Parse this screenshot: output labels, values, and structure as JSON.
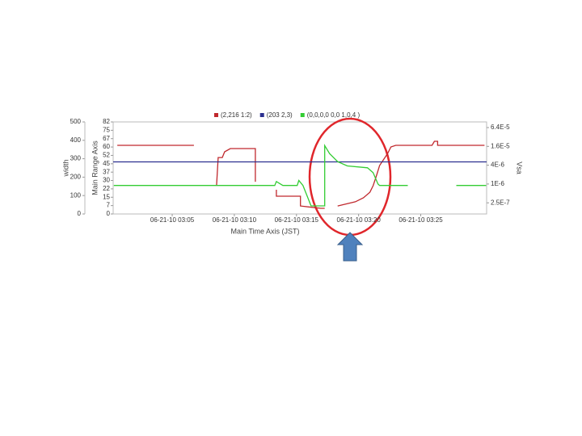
{
  "chart_data": {
    "type": "line",
    "x_label": "Main Time Axis (JST)",
    "xlim": [
      0.25,
      30.3
    ],
    "xticks": [
      {
        "value": 5,
        "label": "06-21-10 03:05"
      },
      {
        "value": 10,
        "label": "06-21-10 03:10"
      },
      {
        "value": 15,
        "label": "06-21-10 03:15"
      },
      {
        "value": 20,
        "label": "06-21-10 03:20"
      },
      {
        "value": 25,
        "label": "06-21-10 03:25"
      }
    ],
    "y_label": "Main Range Axis",
    "ylim": [
      0,
      82.5
    ],
    "yticks": [
      0,
      {
        "value": 7.5,
        "label": "7"
      },
      15,
      {
        "value": 22.5,
        "label": "22"
      },
      30,
      {
        "value": 37.5,
        "label": "37"
      },
      45,
      {
        "value": 52.5,
        "label": "52"
      },
      60,
      {
        "value": 67.5,
        "label": "67"
      },
      75,
      {
        "value": 82.5,
        "label": "82"
      }
    ],
    "width_axis": {
      "label": "width",
      "lim": [
        0,
        500
      ],
      "ticks": [
        0,
        100,
        200,
        300,
        400,
        500
      ]
    },
    "y2_label": "Vsa",
    "y2_log": true,
    "y2lim": [
      1.1e-07,
      9.7e-05
    ],
    "y2ticks": [
      {
        "value": 2.5e-07,
        "label": "2.5E-7"
      },
      {
        "value": 1e-06,
        "label": "1E-6"
      },
      {
        "value": 4e-06,
        "label": "4E-6"
      },
      {
        "value": 1.6e-05,
        "label": "1.6E-5"
      },
      {
        "value": 6.4e-05,
        "label": "6.4E-5"
      }
    ],
    "series": [
      {
        "name": "(2,216 1:2)",
        "color": "#c0282d",
        "axis": "y",
        "x": [
          0.58,
          6.75,
          null,
          8.57,
          8.7,
          9.03,
          9.22,
          9.68,
          11.69,
          11.69,
          null,
          13.38,
          13.38,
          15.32,
          15.32,
          16.95,
          17.27,
          null,
          18.31,
          19.74,
          20.39,
          20.91,
          21.17,
          21.43,
          21.69,
          22.34,
          22.6,
          22.99,
          25.91,
          26.1,
          26.36,
          26.36,
          30.13
        ],
        "values": [
          61.5,
          61.5,
          null,
          25.3,
          50.6,
          50.6,
          55.7,
          58.6,
          58.6,
          28.9,
          null,
          21.7,
          15.9,
          15.9,
          7.2,
          5.1,
          5.1,
          null,
          7.2,
          10.9,
          14.5,
          19.5,
          25.3,
          34,
          43.4,
          54.3,
          60.1,
          61.5,
          61.5,
          65.1,
          65.1,
          61.5,
          61.5
        ]
      },
      {
        "name": "(203 2,3)",
        "color": "#2b2f8f",
        "axis": "width",
        "x": [
          0.25,
          30.3
        ],
        "values": [
          283,
          283
        ]
      },
      {
        "name": "(0,0,0,0 0,0 1,0,4 )",
        "color": "#33cc33",
        "axis": "y2",
        "x": [
          0.3,
          13.25,
          13.38,
          13.9,
          15.06,
          15.19,
          15.52,
          16.17,
          17.27,
          17.27,
          17.66,
          18.31,
          19.09,
          20.71,
          21.17,
          21.56,
          21.69,
          23.96,
          null,
          27.86,
          30.26
        ],
        "values": [
          9e-07,
          9e-07,
          1.2e-06,
          9e-07,
          9e-07,
          1.3e-06,
          9e-07,
          2e-07,
          2e-07,
          1.7e-05,
          9.4e-06,
          5.2e-06,
          3.8e-06,
          3.3e-06,
          2.3e-06,
          1e-06,
          9e-07,
          9e-07,
          null,
          9e-07,
          9e-07
        ]
      }
    ]
  }
}
